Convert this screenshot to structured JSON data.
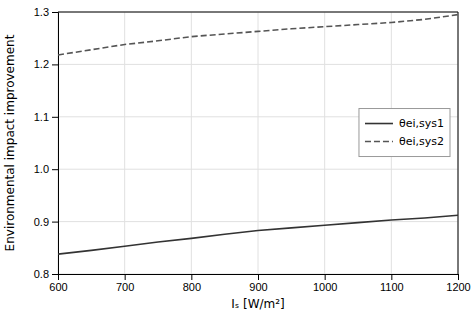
{
  "chart_data": {
    "type": "line",
    "x_label": "Iₛ [W/m²]",
    "y_label": "Environmental impact improvement",
    "x": [
      600,
      650,
      700,
      750,
      800,
      850,
      900,
      950,
      1000,
      1050,
      1100,
      1150,
      1200
    ],
    "series": [
      {
        "name": "θei,sys1",
        "color": "#333333",
        "line_style": "solid",
        "values": [
          0.838,
          0.845,
          0.853,
          0.861,
          0.868,
          0.876,
          0.883,
          0.888,
          0.893,
          0.898,
          0.903,
          0.907,
          0.912
        ]
      },
      {
        "name": "θei,sys2",
        "color": "#555555",
        "line_style": "dashed",
        "values": [
          1.218,
          1.228,
          1.238,
          1.245,
          1.253,
          1.258,
          1.263,
          1.268,
          1.272,
          1.276,
          1.28,
          1.286,
          1.295
        ]
      }
    ],
    "xlim": [
      600,
      1200
    ],
    "ylim": [
      0.8,
      1.3
    ],
    "xticks": [
      600,
      700,
      800,
      900,
      1000,
      1100,
      1200
    ],
    "yticks": [
      0.8,
      0.9,
      {
        "value": 1.0,
        "label": "1.0"
      },
      1.1,
      1.2,
      1.3
    ],
    "grid": true,
    "legend": "right"
  }
}
